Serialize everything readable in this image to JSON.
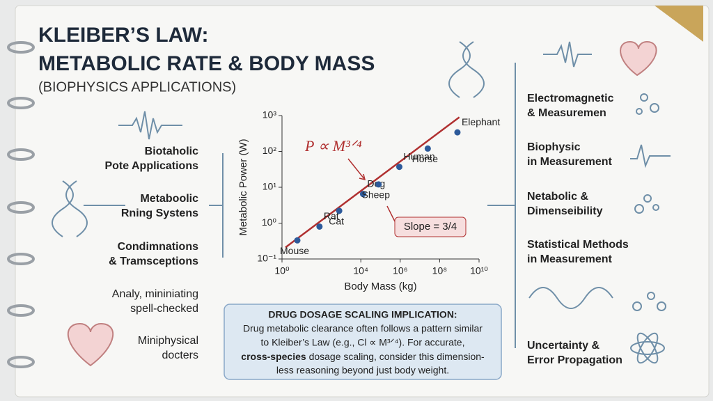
{
  "title": {
    "line1": "KLEIBER’S LAW:",
    "line2": "METABOLIC RATE & BODY MASS",
    "subtitle": "(BIOPHYSICS APPLICATIONS)"
  },
  "left_items": [
    [
      "Biotaholic",
      "Pote Applications"
    ],
    [
      "Metaboolic",
      "Rning Systens"
    ],
    [
      "Condimnations",
      "& Tramsceptions"
    ],
    [
      "Analy, mininiating",
      "spell-checked"
    ],
    [
      "Miniphysical",
      "docters"
    ]
  ],
  "right_items": [
    [
      "Electromagnetic",
      "& Measuremen"
    ],
    [
      "Biophysic",
      "in Measurement"
    ],
    [
      "Netabolic &",
      "Dimenseibility"
    ],
    [
      "Statistical Methods",
      "in Measurement"
    ],
    [
      "Uncertainty &",
      "Error Propagation"
    ]
  ],
  "chart_data": {
    "type": "scatter",
    "xlabel": "Body Mass (kg)",
    "ylabel": "Metabolic Power (W)",
    "x": [
      6,
      80,
      800,
      13000,
      80000,
      900000,
      25000000,
      800000000
    ],
    "values": [
      0.33,
      0.8,
      2.2,
      6.5,
      12,
      37,
      120,
      340
    ],
    "point_labels": [
      "Mouse",
      "Rat",
      "Cat",
      "Dog",
      "Sheep",
      "Human",
      "Horse",
      "Elephant"
    ],
    "xscale": "log",
    "yscale": "log",
    "xlim": [
      1,
      10000000000
    ],
    "ylim": [
      0.1,
      1000
    ],
    "xticks": [
      {
        "value": 1,
        "label": "10⁰"
      },
      {
        "value": 10000,
        "label": "10⁴"
      },
      {
        "value": 1000000,
        "label": "10⁶"
      },
      {
        "value": 100000000,
        "label": "10⁸"
      },
      {
        "value": 10000000000,
        "label": "10¹⁰"
      }
    ],
    "yticks": [
      {
        "value": 0.1,
        "label": "10⁻¹"
      },
      {
        "value": 1,
        "label": "10⁰"
      },
      {
        "value": 10,
        "label": "10¹"
      },
      {
        "value": 100,
        "label": "10²"
      },
      {
        "value": 1000,
        "label": "10³"
      }
    ],
    "color": "#2d5a9a",
    "line_color": "#b03030",
    "fit_line": {
      "x": [
        1.5,
        1000000000
      ],
      "y": [
        0.21,
        900
      ]
    },
    "equation": "P ∝ M³ᐟ⁴",
    "annotation": "Slope = 3/4"
  },
  "callout": {
    "title": "DRUG DOSAGE SCALING IMPLICATION:",
    "line1": "Drug metabolic clearance often follows a pattern similar",
    "line2": "to Kleiber’s Law (e.g., Cl ∝ M³ᐟ⁴). For accurate,",
    "line3_bold": "cross-species",
    "line3_rest": " dosage scaling, consider this dimension-",
    "line4": "less reasoning beyond just body weight."
  }
}
